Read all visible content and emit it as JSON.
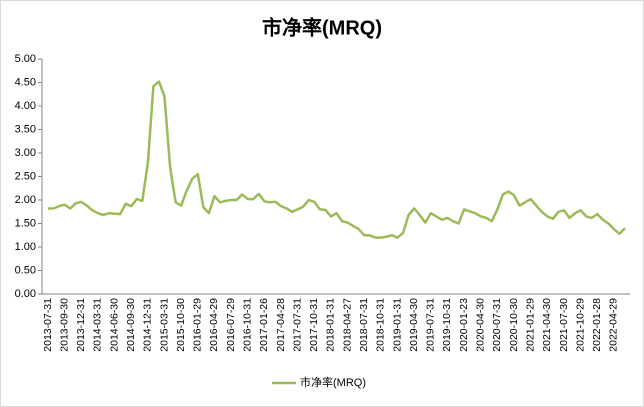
{
  "chart_data": {
    "type": "line",
    "title": "市净率(MRQ)",
    "categories": [
      "2013-07-31",
      null,
      null,
      "2013-09-30",
      null,
      null,
      "2013-12-31",
      null,
      null,
      "2014-03-31",
      null,
      null,
      "2014-06-30",
      null,
      null,
      "2014-09-30",
      null,
      null,
      "2014-12-31",
      null,
      null,
      "2015-03-31",
      null,
      null,
      "2015-10-30",
      null,
      null,
      "2016-01-29",
      null,
      null,
      "2016-04-29",
      null,
      null,
      "2016-07-29",
      null,
      null,
      "2016-10-31",
      null,
      null,
      "2017-01-26",
      null,
      null,
      "2017-04-28",
      null,
      null,
      "2017-07-31",
      null,
      null,
      "2017-10-31",
      null,
      null,
      "2018-01-31",
      null,
      null,
      "2018-04-27",
      null,
      null,
      "2018-07-31",
      null,
      null,
      "2018-10-31",
      null,
      null,
      "2019-01-31",
      null,
      null,
      "2019-04-30",
      null,
      null,
      "2019-07-31",
      null,
      null,
      "2019-10-31",
      null,
      null,
      "2020-01-23",
      null,
      null,
      "2020-04-30",
      null,
      null,
      "2020-07-31",
      null,
      null,
      "2020-10-30",
      null,
      null,
      "2021-01-29",
      null,
      null,
      "2021-04-30",
      null,
      null,
      "2021-07-30",
      null,
      null,
      "2021-10-29",
      null,
      null,
      "2022-01-28",
      null,
      null,
      "2022-04-29",
      null,
      null
    ],
    "series": [
      {
        "name": "市净率(MRQ)",
        "color": "#9bbb59",
        "values": [
          1.82,
          1.82,
          1.87,
          1.9,
          1.82,
          1.93,
          1.96,
          1.88,
          1.78,
          1.72,
          1.68,
          1.72,
          1.71,
          1.7,
          1.92,
          1.87,
          2.02,
          1.98,
          2.8,
          4.42,
          4.52,
          4.2,
          2.7,
          1.95,
          1.88,
          2.2,
          2.45,
          2.55,
          1.85,
          1.72,
          2.08,
          1.95,
          1.98,
          2.0,
          2.0,
          2.12,
          2.02,
          2.02,
          2.13,
          1.97,
          1.95,
          1.96,
          1.87,
          1.82,
          1.75,
          1.8,
          1.86,
          2.0,
          1.96,
          1.8,
          1.79,
          1.65,
          1.72,
          1.55,
          1.52,
          1.45,
          1.38,
          1.25,
          1.25,
          1.2,
          1.2,
          1.22,
          1.25,
          1.2,
          1.3,
          1.68,
          1.82,
          1.68,
          1.52,
          1.72,
          1.65,
          1.58,
          1.62,
          1.55,
          1.5,
          1.8,
          1.76,
          1.72,
          1.65,
          1.62,
          1.55,
          1.8,
          2.12,
          2.18,
          2.1,
          1.88,
          1.95,
          2.02,
          1.88,
          1.75,
          1.65,
          1.6,
          1.75,
          1.78,
          1.62,
          1.72,
          1.78,
          1.65,
          1.62,
          1.7,
          1.58,
          1.5,
          1.38,
          1.28,
          1.4
        ]
      }
    ],
    "ylim": [
      0,
      5
    ],
    "yticks": [
      {
        "value": 0,
        "label": "0.00"
      },
      {
        "value": 0.5,
        "label": "0.50"
      },
      {
        "value": 1,
        "label": "1.00"
      },
      {
        "value": 1.5,
        "label": "1.50"
      },
      {
        "value": 2,
        "label": "2.00"
      },
      {
        "value": 2.5,
        "label": "2.50"
      },
      {
        "value": 3,
        "label": "3.00"
      },
      {
        "value": 3.5,
        "label": "3.50"
      },
      {
        "value": 4,
        "label": "4.00"
      },
      {
        "value": 4.5,
        "label": "4.50"
      },
      {
        "value": 5,
        "label": "5.00"
      }
    ],
    "grid": false,
    "legend": "bottom"
  }
}
